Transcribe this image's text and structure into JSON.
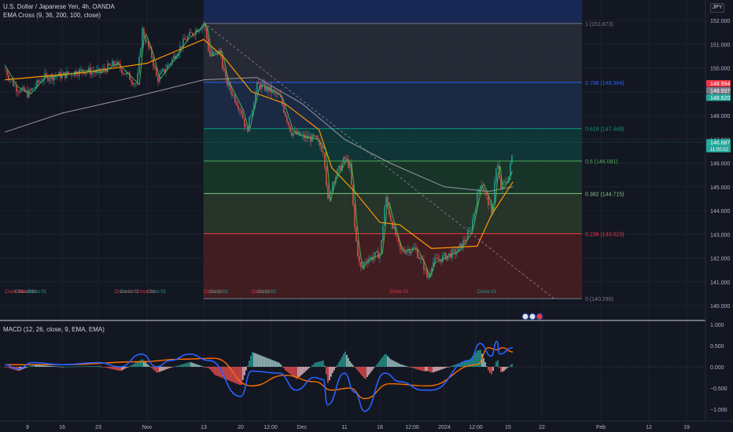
{
  "header": {
    "symbol_line": "U.S. Dollar / Japanese Yen, 4h, OANDA",
    "indicator_line": "EMA Cross (9, 36, 200, 100, close)",
    "macd_line": "MACD (12, 26, close, 9, EMA, EMA)",
    "currency": "JPY"
  },
  "colors": {
    "background": "#131722",
    "up": "#26a69a",
    "down": "#ef5350",
    "ema_fast": "#4caf50",
    "ema_slow": "#ff9800",
    "ema_long": "#9598a1",
    "macd": "#2962ff",
    "signal": "#ff6d00"
  },
  "chart_data": [
    {
      "type": "candlestick",
      "title": "U.S. Dollar / Japanese Yen, 4h, OANDA",
      "x_ticks": [
        "9",
        "16",
        "23",
        "Nov",
        "13",
        "20",
        "12:00",
        "Dec",
        "11",
        "18",
        "12:00",
        "2024",
        "12:00",
        "15",
        "22",
        "Feb",
        "12",
        "19"
      ],
      "y_ticks": [
        152.0,
        151.0,
        150.0,
        149.0,
        148.0,
        147.0,
        146.0,
        145.0,
        144.0,
        143.0,
        142.0,
        141.0,
        140.0
      ],
      "ylim": [
        139.7,
        152.6
      ],
      "price_path": [
        {
          "x": "Oct 2",
          "y": 149.9
        },
        {
          "x": "Oct 5",
          "y": 149.2
        },
        {
          "x": "Oct 9",
          "y": 148.9
        },
        {
          "x": "Oct 12",
          "y": 149.6
        },
        {
          "x": "Oct 16",
          "y": 149.7
        },
        {
          "x": "Oct 20",
          "y": 149.9
        },
        {
          "x": "Oct 23",
          "y": 149.8
        },
        {
          "x": "Oct 26",
          "y": 150.2
        },
        {
          "x": "Oct 30",
          "y": 149.3
        },
        {
          "x": "Oct 31",
          "y": 151.6
        },
        {
          "x": "Nov 2",
          "y": 150.4
        },
        {
          "x": "Nov 3",
          "y": 149.5
        },
        {
          "x": "Nov 6",
          "y": 150.3
        },
        {
          "x": "Nov 9",
          "y": 151.2
        },
        {
          "x": "Nov 13",
          "y": 151.9
        },
        {
          "x": "Nov 14",
          "y": 150.5
        },
        {
          "x": "Nov 16",
          "y": 150.7
        },
        {
          "x": "Nov 17",
          "y": 149.5
        },
        {
          "x": "Nov 20",
          "y": 148.2
        },
        {
          "x": "Nov 21",
          "y": 147.3
        },
        {
          "x": "Nov 23",
          "y": 149.3
        },
        {
          "x": "Nov 25",
          "y": 149.1
        },
        {
          "x": "Nov 27",
          "y": 148.8
        },
        {
          "x": "Nov 29",
          "y": 147.3
        },
        {
          "x": "Dec 1",
          "y": 147.1
        },
        {
          "x": "Dec 4",
          "y": 147.0
        },
        {
          "x": "Dec 6",
          "y": 146.5
        },
        {
          "x": "Dec 7",
          "y": 144.3
        },
        {
          "x": "Dec 8",
          "y": 145.2
        },
        {
          "x": "Dec 11",
          "y": 146.2
        },
        {
          "x": "Dec 12",
          "y": 145.8
        },
        {
          "x": "Dec 13",
          "y": 143.0
        },
        {
          "x": "Dec 14",
          "y": 141.5
        },
        {
          "x": "Dec 15",
          "y": 141.9
        },
        {
          "x": "Dec 18",
          "y": 142.2
        },
        {
          "x": "Dec 19",
          "y": 144.6
        },
        {
          "x": "Dec 20",
          "y": 143.7
        },
        {
          "x": "Dec 22",
          "y": 142.3
        },
        {
          "x": "Dec 25",
          "y": 142.4
        },
        {
          "x": "Dec 27",
          "y": 141.7
        },
        {
          "x": "Dec 28",
          "y": 141.1
        },
        {
          "x": "Dec 29",
          "y": 141.8
        },
        {
          "x": "Jan 2",
          "y": 142.3
        },
        {
          "x": "Jan 3",
          "y": 143.1
        },
        {
          "x": "Jan 4",
          "y": 144.7
        },
        {
          "x": "Jan 5",
          "y": 145.2
        },
        {
          "x": "Jan 8",
          "y": 144.3
        },
        {
          "x": "Jan 9",
          "y": 143.7
        },
        {
          "x": "Jan 10",
          "y": 145.3
        },
        {
          "x": "Jan 11",
          "y": 146.0
        },
        {
          "x": "Jan 12",
          "y": 144.9
        },
        {
          "x": "Jan 15",
          "y": 145.4
        },
        {
          "x": "Jan 16",
          "y": 146.7
        }
      ],
      "ema_slow_path": [
        {
          "x": "Oct 2",
          "y": 149.5
        },
        {
          "x": "Oct 20",
          "y": 149.8
        },
        {
          "x": "Nov 1",
          "y": 150.2
        },
        {
          "x": "Nov 13",
          "y": 151.2
        },
        {
          "x": "Nov 17",
          "y": 150.4
        },
        {
          "x": "Nov 22",
          "y": 149.0
        },
        {
          "x": "Nov 28",
          "y": 148.5
        },
        {
          "x": "Dec 5",
          "y": 147.4
        },
        {
          "x": "Dec 8",
          "y": 145.8
        },
        {
          "x": "Dec 13",
          "y": 144.8
        },
        {
          "x": "Dec 18",
          "y": 143.5
        },
        {
          "x": "Dec 22",
          "y": 143.4
        },
        {
          "x": "Dec 29",
          "y": 142.4
        },
        {
          "x": "Jan 4",
          "y": 142.5
        },
        {
          "x": "Jan 9",
          "y": 143.8
        },
        {
          "x": "Jan 16",
          "y": 145.2
        }
      ],
      "ema_200_path": [
        {
          "x": "Oct 2",
          "y": 147.3
        },
        {
          "x": "Oct 16",
          "y": 148.1
        },
        {
          "x": "Oct 30",
          "y": 148.8
        },
        {
          "x": "Nov 13",
          "y": 149.5
        },
        {
          "x": "Nov 23",
          "y": 149.6
        },
        {
          "x": "Dec 1",
          "y": 148.5
        },
        {
          "x": "Dec 11",
          "y": 147.0
        },
        {
          "x": "Dec 20",
          "y": 146.0
        },
        {
          "x": "Jan 1",
          "y": 145.0
        },
        {
          "x": "Jan 8",
          "y": 144.8
        },
        {
          "x": "Jan 16",
          "y": 145.0
        }
      ],
      "trendline": [
        {
          "x": "Nov 13",
          "y": 151.9
        },
        {
          "x": "Jan 24",
          "y": 140.3
        }
      ],
      "fibonacci": {
        "levels": [
          {
            "ratio": "1",
            "label": "1 (151.873)",
            "price": 151.873,
            "color": "#787b86"
          },
          {
            "ratio": "0.786",
            "label": "0.786 (149.394)",
            "price": 149.394,
            "color": "#2962ff"
          },
          {
            "ratio": "0.618",
            "label": "0.618 (147.448)",
            "price": 147.448,
            "color": "#089981"
          },
          {
            "ratio": "0.5",
            "label": "0.5 (146.081)",
            "price": 146.081,
            "color": "#4caf50"
          },
          {
            "ratio": "0.382",
            "label": "0.382 (144.715)",
            "price": 144.715,
            "color": "#81c784"
          },
          {
            "ratio": "0.236",
            "label": "0.236 (143.023)",
            "price": 143.023,
            "color": "#f23645"
          },
          {
            "ratio": "0",
            "label": "0 (140.290)",
            "price": 140.29,
            "color": "#787b86"
          }
        ]
      },
      "cross_labels": [
        {
          "text": "Cross 01",
          "x": "Oct 2",
          "color": "#f23645"
        },
        {
          "text": "Cross 01",
          "x": "Oct 5",
          "color": "#26a69a"
        },
        {
          "text": "Cross 01",
          "x": "Oct 6",
          "color": "#f23645"
        },
        {
          "text": "Cross 01",
          "x": "Oct 9",
          "color": "#26a69a"
        },
        {
          "text": "Cross 01",
          "x": "Oct 26",
          "color": "#f23645"
        },
        {
          "text": "Cross 01",
          "x": "Oct 27",
          "color": "#26a69a"
        },
        {
          "text": "Cross 01",
          "x": "Oct 30",
          "color": "#f23645"
        },
        {
          "text": "Cross 01",
          "x": "Nov 1",
          "color": "#26a69a"
        },
        {
          "text": "Cross 01",
          "x": "Nov 13",
          "color": "#f23645"
        },
        {
          "text": "Cross 01",
          "x": "Nov 14",
          "color": "#26a69a"
        },
        {
          "text": "Cross 01",
          "x": "Nov 22",
          "color": "#f23645"
        },
        {
          "text": "Cross 02",
          "x": "Nov 23",
          "color": "#26a69a"
        },
        {
          "text": "Cross 01",
          "x": "Dec 20",
          "color": "#f23645"
        },
        {
          "text": "Cross 01",
          "x": "Jan 4",
          "color": "#26a69a"
        }
      ],
      "price_tags": [
        {
          "value": "148.994",
          "color": "#f23645"
        },
        {
          "value": "148.937",
          "color": "#787b86"
        },
        {
          "value": "148.620",
          "color": "#26a69a"
        },
        {
          "value": "146.687",
          "sub": "11:00:02",
          "color": "#26a69a"
        }
      ]
    },
    {
      "type": "macd",
      "title": "MACD (12, 26, close, 9, EMA, EMA)",
      "y_ticks": [
        1.0,
        0.5,
        0.0,
        -0.5,
        -1.0
      ],
      "ylim": [
        -1.15,
        1.05
      ],
      "macd": [
        {
          "x": "Oct 2",
          "y": 0.05
        },
        {
          "x": "Oct 6",
          "y": -0.05
        },
        {
          "x": "Oct 10",
          "y": 0.1
        },
        {
          "x": "Oct 16",
          "y": 0.05
        },
        {
          "x": "Oct 23",
          "y": 0.1
        },
        {
          "x": "Oct 27",
          "y": 0.0
        },
        {
          "x": "Oct 31",
          "y": 0.3
        },
        {
          "x": "Nov 3",
          "y": 0.0
        },
        {
          "x": "Nov 6",
          "y": 0.15
        },
        {
          "x": "Nov 10",
          "y": 0.3
        },
        {
          "x": "Nov 14",
          "y": 0.15
        },
        {
          "x": "Nov 20",
          "y": -0.7
        },
        {
          "x": "Nov 22",
          "y": -0.1
        },
        {
          "x": "Nov 27",
          "y": -0.15
        },
        {
          "x": "Nov 30",
          "y": -0.55
        },
        {
          "x": "Dec 4",
          "y": -0.25
        },
        {
          "x": "Dec 6",
          "y": -0.3
        },
        {
          "x": "Dec 7",
          "y": -0.9
        },
        {
          "x": "Dec 11",
          "y": -0.15
        },
        {
          "x": "Dec 13",
          "y": -0.6
        },
        {
          "x": "Dec 15",
          "y": -1.05
        },
        {
          "x": "Dec 19",
          "y": -0.15
        },
        {
          "x": "Dec 22",
          "y": -0.35
        },
        {
          "x": "Dec 27",
          "y": -0.55
        },
        {
          "x": "Dec 29",
          "y": -0.55
        },
        {
          "x": "Jan 3",
          "y": 0.15
        },
        {
          "x": "Jan 5",
          "y": 0.55
        },
        {
          "x": "Jan 9",
          "y": 0.25
        },
        {
          "x": "Jan 11",
          "y": 0.6
        },
        {
          "x": "Jan 12",
          "y": 0.3
        },
        {
          "x": "Jan 16",
          "y": 0.45
        }
      ],
      "signal": [
        {
          "x": "Oct 2",
          "y": 0.05
        },
        {
          "x": "Oct 16",
          "y": 0.05
        },
        {
          "x": "Oct 31",
          "y": 0.12
        },
        {
          "x": "Nov 8",
          "y": 0.18
        },
        {
          "x": "Nov 15",
          "y": 0.2
        },
        {
          "x": "Nov 22",
          "y": -0.45
        },
        {
          "x": "Nov 28",
          "y": -0.2
        },
        {
          "x": "Dec 4",
          "y": -0.35
        },
        {
          "x": "Dec 8",
          "y": -0.55
        },
        {
          "x": "Dec 12",
          "y": -0.5
        },
        {
          "x": "Dec 15",
          "y": -0.75
        },
        {
          "x": "Dec 20",
          "y": -0.4
        },
        {
          "x": "Dec 28",
          "y": -0.45
        },
        {
          "x": "Jan 4",
          "y": 0.05
        },
        {
          "x": "Jan 8",
          "y": 0.45
        },
        {
          "x": "Jan 11",
          "y": 0.4
        },
        {
          "x": "Jan 13",
          "y": 0.45
        },
        {
          "x": "Jan 16",
          "y": 0.35
        }
      ]
    }
  ]
}
